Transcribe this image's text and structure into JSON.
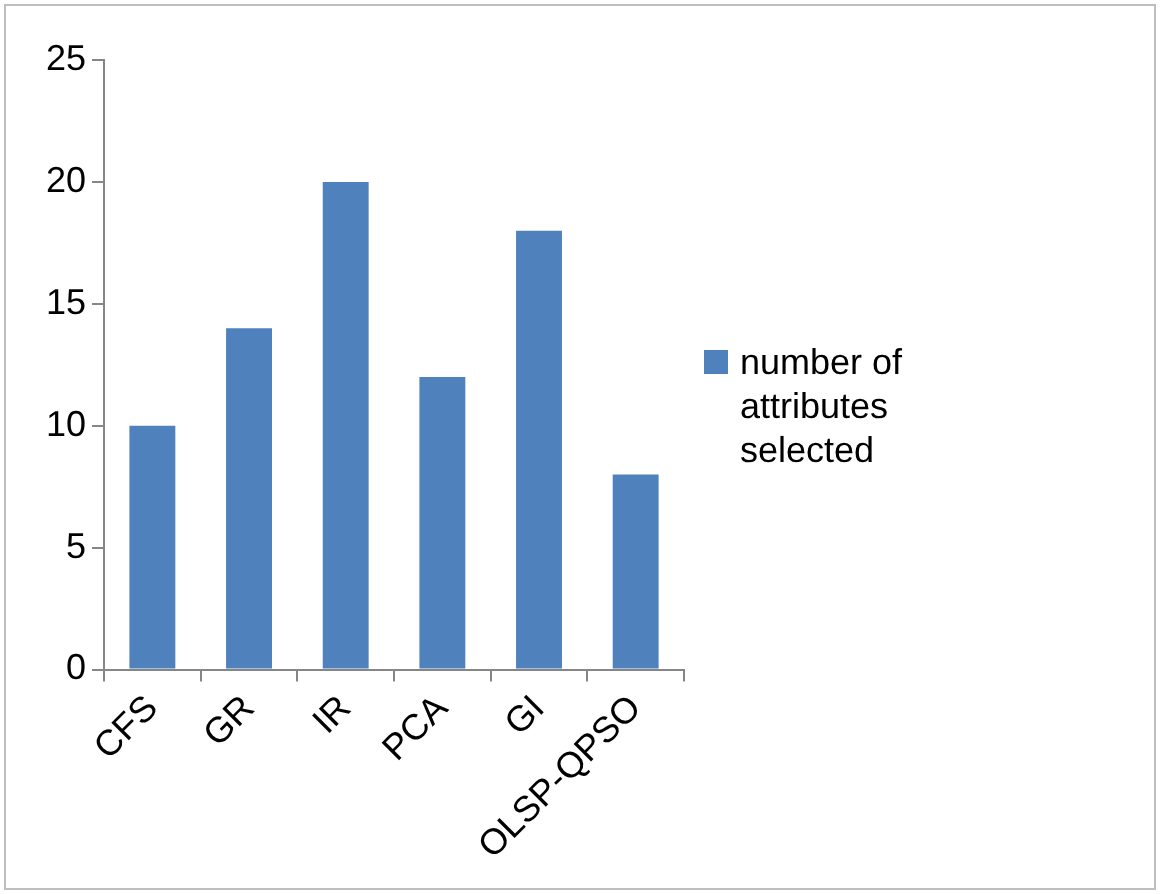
{
  "chart_data": {
    "type": "bar",
    "categories": [
      "CFS",
      "GR",
      "IR",
      "PCA",
      "GI",
      "OLSP-QPSO"
    ],
    "series": [
      {
        "name": "number of attributes selected",
        "color": "#4f81bd",
        "values": [
          10,
          14,
          20,
          12,
          18,
          8
        ]
      }
    ],
    "ylim": [
      0,
      25
    ],
    "yticks": [
      0,
      5,
      10,
      15,
      20,
      25
    ],
    "grid": false,
    "legend": "right"
  }
}
